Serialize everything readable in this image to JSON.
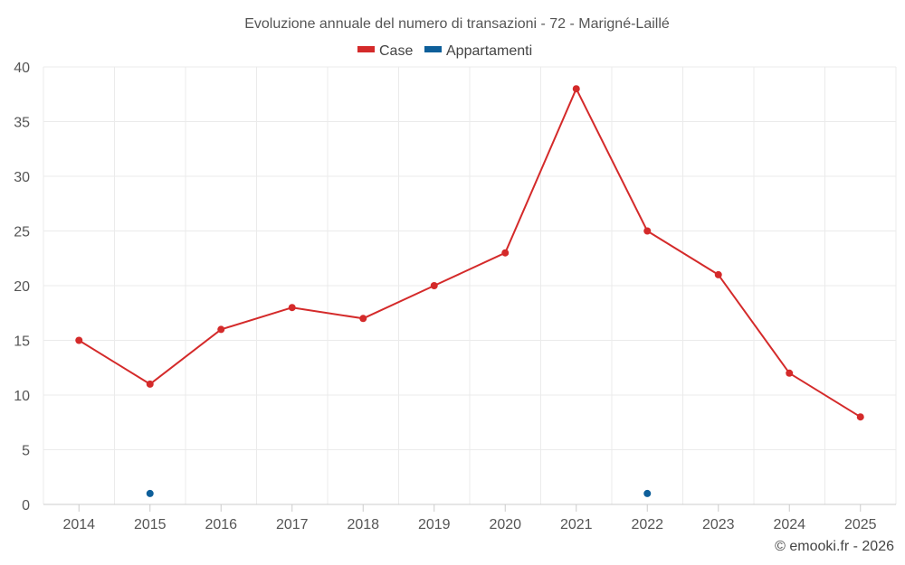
{
  "chart_data": {
    "type": "line",
    "title": "Evoluzione annuale del numero di transazioni - 72 - Marigné-Laillé",
    "categories": [
      "2014",
      "2015",
      "2016",
      "2017",
      "2018",
      "2019",
      "2020",
      "2021",
      "2022",
      "2023",
      "2024",
      "2025"
    ],
    "ylim": [
      0,
      40
    ],
    "yticks": [
      0,
      5,
      10,
      15,
      20,
      25,
      30,
      35,
      40
    ],
    "grid": true,
    "legend_position": "top-center",
    "series": [
      {
        "name": "Case",
        "color": "#d42a2a",
        "line": true,
        "values": [
          15,
          11,
          16,
          18,
          17,
          20,
          23,
          38,
          25,
          21,
          12,
          8
        ]
      },
      {
        "name": "Appartamenti",
        "color": "#0e5f9a",
        "line": false,
        "values": [
          null,
          1,
          null,
          null,
          null,
          null,
          null,
          null,
          1,
          null,
          null,
          null
        ]
      }
    ],
    "credit": "© emooki.fr - 2026"
  }
}
